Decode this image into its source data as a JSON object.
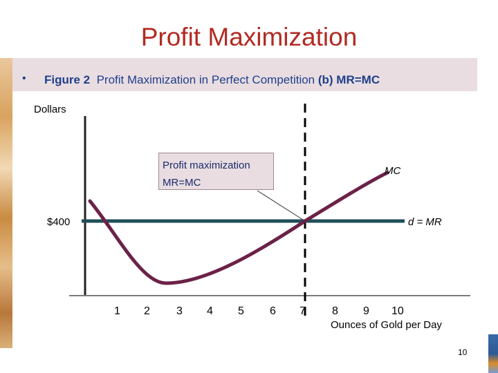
{
  "slide": {
    "title": "Profit Maximization",
    "bullet_figure": "Figure 2",
    "bullet_caption": "Profit Maximization in Perfect Competition",
    "bullet_part": "(b) MR=MC",
    "page_number": "10"
  },
  "chart_data": {
    "type": "line",
    "ylabel": "Dollars",
    "xlabel": "Ounces of Gold per Day",
    "x_ticks": [
      "1",
      "2",
      "3",
      "4",
      "5",
      "6",
      "7",
      "8",
      "9",
      "10"
    ],
    "price_label": "$400",
    "price": 400,
    "profit_max_quantity": 7,
    "series": [
      {
        "name": "d = MR",
        "type": "horizontal",
        "y": 400
      },
      {
        "name": "MC",
        "type": "u-shaped curve"
      }
    ],
    "annotation": {
      "line1": "Profit maximization",
      "line2": "MR=MC"
    },
    "colors": {
      "mc_curve": "#6b2248",
      "demand_line": "#1f4e5a",
      "axis": "#222222",
      "dashed_line": "#000000"
    }
  }
}
